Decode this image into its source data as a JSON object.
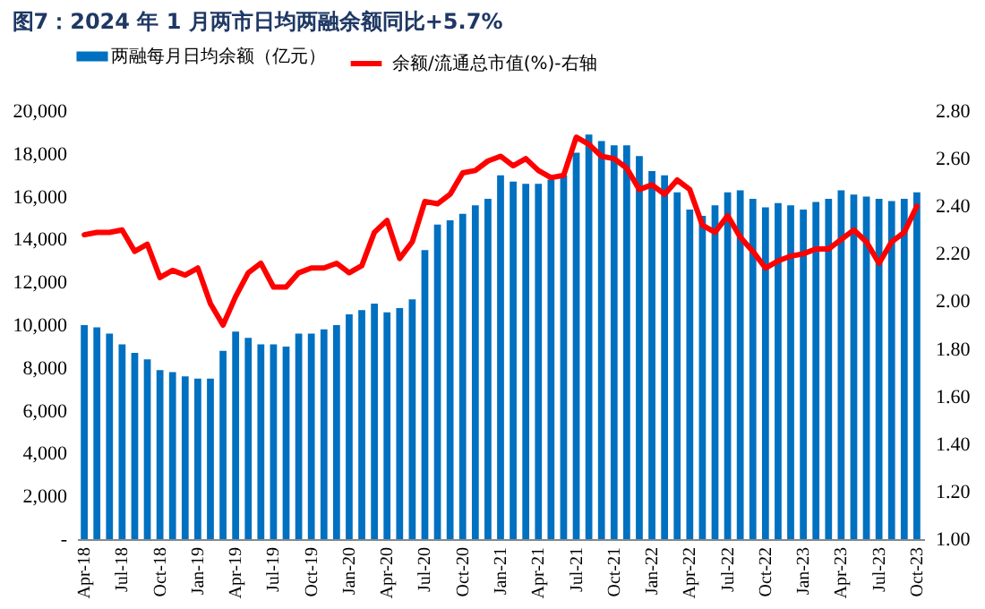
{
  "chart_data": {
    "type": "bar",
    "title": "图7：2024 年 1 月两市日均两融余额同比+5.7%",
    "categories": [
      "Apr-18",
      null,
      null,
      "Jul-18",
      null,
      null,
      "Oct-18",
      null,
      null,
      "Jan-19",
      null,
      null,
      "Apr-19",
      null,
      null,
      "Jul-19",
      null,
      null,
      "Oct-19",
      null,
      null,
      "Jan-20",
      null,
      null,
      "Apr-20",
      null,
      null,
      "Jul-20",
      null,
      null,
      "Oct-20",
      null,
      null,
      "Jan-21",
      null,
      null,
      "Apr-21",
      null,
      null,
      "Jul-21",
      null,
      null,
      "Oct-21",
      null,
      null,
      "Jan-22",
      null,
      null,
      "Apr-22",
      null,
      null,
      "Jul-22",
      null,
      null,
      "Oct-22",
      null,
      null,
      "Jan-23",
      null,
      null,
      "Apr-23",
      null,
      null,
      "Jul-23",
      null,
      null,
      "Oct-23"
    ],
    "series": [
      {
        "name": "两融每月日均余额（亿元）",
        "color": "#0070c0",
        "values": [
          10000,
          9900,
          9600,
          9100,
          8700,
          8400,
          7900,
          7800,
          7600,
          7500,
          7500,
          8800,
          9700,
          9400,
          9100,
          9100,
          9000,
          9600,
          9600,
          9800,
          10000,
          10500,
          10700,
          11000,
          10600,
          10800,
          11200,
          13500,
          14700,
          14900,
          15200,
          15600,
          15900,
          17000,
          16700,
          16600,
          16600,
          16800,
          17000,
          18050,
          18900,
          18600,
          18400,
          18400,
          17900,
          17200,
          17000,
          16200,
          15400,
          15100,
          15600,
          16200,
          16300,
          15900,
          15500,
          15700,
          15600,
          15400,
          15750,
          15900,
          16300,
          16100,
          16000,
          15900,
          15800,
          15900,
          16200
        ]
      },
      {
        "name": "余额/流通总市值(%)-右轴",
        "type": "line",
        "axis": "y2",
        "color": "#ff0000",
        "values": [
          2.28,
          2.29,
          2.29,
          2.3,
          2.21,
          2.24,
          2.1,
          2.13,
          2.11,
          2.14,
          1.99,
          1.9,
          2.02,
          2.12,
          2.16,
          2.06,
          2.06,
          2.12,
          2.14,
          2.14,
          2.16,
          2.12,
          2.15,
          2.29,
          2.34,
          2.18,
          2.25,
          2.42,
          2.41,
          2.45,
          2.54,
          2.55,
          2.59,
          2.61,
          2.57,
          2.6,
          2.55,
          2.52,
          2.53,
          2.69,
          2.66,
          2.61,
          2.6,
          2.56,
          2.47,
          2.49,
          2.45,
          2.51,
          2.47,
          2.32,
          2.29,
          2.36,
          2.27,
          2.21,
          2.14,
          2.17,
          2.19,
          2.2,
          2.22,
          2.22,
          2.26,
          2.3,
          2.25,
          2.16,
          2.25,
          2.29,
          2.4
        ]
      }
    ],
    "ylim": [
      0,
      20000
    ],
    "yticks": [
      {
        "value": 0,
        "label": "-"
      },
      {
        "value": 2000,
        "label": "2,000"
      },
      {
        "value": 4000,
        "label": "4,000"
      },
      {
        "value": 6000,
        "label": "6,000"
      },
      {
        "value": 8000,
        "label": "8,000"
      },
      {
        "value": 10000,
        "label": "10,000"
      },
      {
        "value": 12000,
        "label": "12,000"
      },
      {
        "value": 14000,
        "label": "14,000"
      },
      {
        "value": 16000,
        "label": "16,000"
      },
      {
        "value": 18000,
        "label": "18,000"
      },
      {
        "value": 20000,
        "label": "20,000"
      }
    ],
    "y2lim": [
      1.0,
      2.8
    ],
    "y2ticks": [
      {
        "value": 1.0,
        "label": "1.00"
      },
      {
        "value": 1.2,
        "label": "1.20"
      },
      {
        "value": 1.4,
        "label": "1.40"
      },
      {
        "value": 1.6,
        "label": "1.60"
      },
      {
        "value": 1.8,
        "label": "1.80"
      },
      {
        "value": 2.0,
        "label": "2.00"
      },
      {
        "value": 2.2,
        "label": "2.20"
      },
      {
        "value": 2.4,
        "label": "2.40"
      },
      {
        "value": 2.6,
        "label": "2.60"
      },
      {
        "value": 2.8,
        "label": "2.80"
      }
    ],
    "legend": "top"
  }
}
